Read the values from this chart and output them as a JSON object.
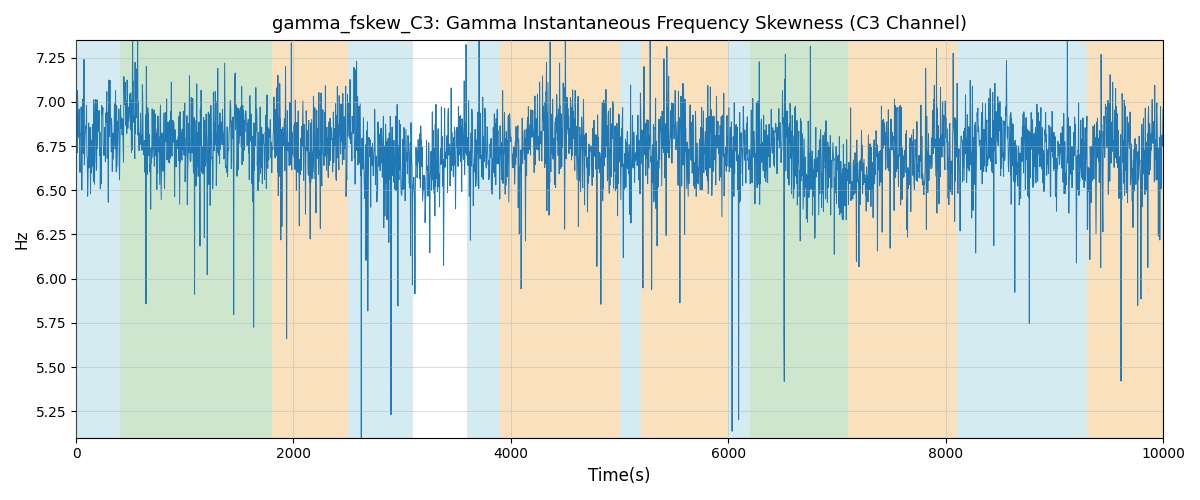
{
  "title": "gamma_fskew_C3: Gamma Instantaneous Frequency Skewness (C3 Channel)",
  "xlabel": "Time(s)",
  "ylabel": "Hz",
  "xlim": [
    0,
    10000
  ],
  "ylim": [
    5.1,
    7.35
  ],
  "line_color": "#1f77b4",
  "line_width": 0.7,
  "background_color": "#ffffff",
  "grid_color": "#b0b0b0",
  "bands": [
    {
      "xmin": 0,
      "xmax": 400,
      "color": "#add8e6",
      "alpha": 0.5
    },
    {
      "xmin": 400,
      "xmax": 1800,
      "color": "#90c990",
      "alpha": 0.45
    },
    {
      "xmin": 1800,
      "xmax": 2500,
      "color": "#f5c98a",
      "alpha": 0.55
    },
    {
      "xmin": 2500,
      "xmax": 3100,
      "color": "#add8e6",
      "alpha": 0.5
    },
    {
      "xmin": 3600,
      "xmax": 3900,
      "color": "#add8e6",
      "alpha": 0.5
    },
    {
      "xmin": 3900,
      "xmax": 5000,
      "color": "#f5c98a",
      "alpha": 0.55
    },
    {
      "xmin": 5000,
      "xmax": 5200,
      "color": "#add8e6",
      "alpha": 0.5
    },
    {
      "xmin": 5200,
      "xmax": 6000,
      "color": "#f5c98a",
      "alpha": 0.55
    },
    {
      "xmin": 6000,
      "xmax": 6200,
      "color": "#add8e6",
      "alpha": 0.5
    },
    {
      "xmin": 6200,
      "xmax": 7100,
      "color": "#90c990",
      "alpha": 0.45
    },
    {
      "xmin": 7100,
      "xmax": 8100,
      "color": "#f5c98a",
      "alpha": 0.55
    },
    {
      "xmin": 8100,
      "xmax": 9300,
      "color": "#add8e6",
      "alpha": 0.5
    },
    {
      "xmin": 9300,
      "xmax": 10000,
      "color": "#f5c98a",
      "alpha": 0.55
    }
  ],
  "yticks": [
    5.25,
    5.5,
    5.75,
    6.0,
    6.25,
    6.5,
    6.75,
    7.0,
    7.25
  ],
  "xticks": [
    0,
    2000,
    4000,
    6000,
    8000,
    10000
  ],
  "seed": 12345,
  "n_points": 3000
}
